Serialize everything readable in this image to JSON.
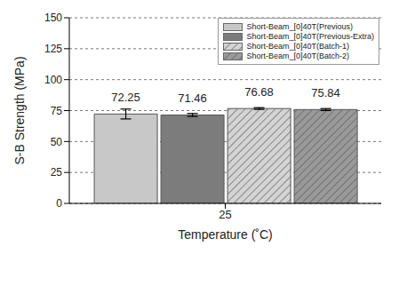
{
  "chart_data": {
    "type": "bar",
    "categories": [
      "25"
    ],
    "x_label": "Temperature (˚C)",
    "y_label": "S-B Strength (MPa)",
    "series": [
      {
        "name": "Short-Beam_[0]40T(Previous)",
        "color": "#c8c8c8",
        "values": [
          72.25
        ],
        "errors": [
          4.0
        ]
      },
      {
        "name": "Short-Beam_[0]40T(Previous-Extra)",
        "color": "#7c7c7c",
        "values": [
          71.46
        ],
        "errors": [
          1.2
        ]
      },
      {
        "name": "Short-Beam_[0]40T(Batch-1)",
        "color": "#d4d4d4",
        "values": [
          76.68
        ],
        "errors": [
          0.7
        ]
      },
      {
        "name": "Short-Beam_[0]40T(Batch-2)",
        "color": "#9a9a9a",
        "values": [
          75.84
        ],
        "errors": [
          0.8
        ]
      }
    ],
    "ylim": [
      0,
      150
    ],
    "yticks": [
      0,
      25,
      50,
      75,
      100,
      125,
      150
    ],
    "grid": true,
    "data_labels": true,
    "legend": "upper right"
  }
}
